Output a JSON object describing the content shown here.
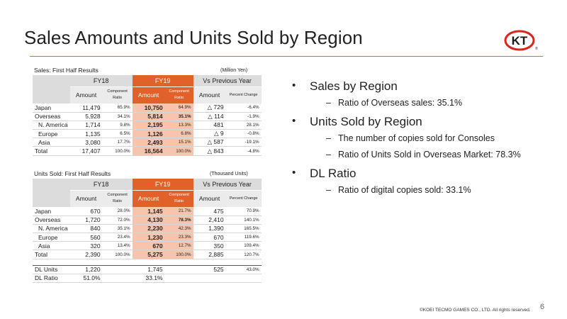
{
  "slide": {
    "title": "Sales Amounts and Units Sold by Region",
    "page_number": "6",
    "copyright": "©KOEI TECMO GAMES CO., LTD.  All rights reserved.",
    "logo_text": "KT",
    "logo_mark": "®"
  },
  "colors": {
    "accent": "#e0622a",
    "highlight": "#f7c4ae",
    "header_gray": "#dcdcdc"
  },
  "sales": {
    "caption": "Sales: First Half Results",
    "unit": "(Million Yen)",
    "headers": {
      "fy18": "FY18",
      "fy19": "FY19",
      "vs": "Vs Previous Year",
      "amount": "Amount",
      "component": "Component Ratio",
      "percent": "Percent Change"
    },
    "rows": [
      {
        "label": "Japan",
        "fy18_amount": "11,479",
        "fy18_ratio": "65.9%",
        "fy19_amount": "10,750",
        "fy19_ratio": "64.9%",
        "vs_amount": "△ 729",
        "vs_pct": "-6.4%"
      },
      {
        "label": "Overseas",
        "fy18_amount": "5,928",
        "fy18_ratio": "34.1%",
        "fy19_amount": "5,814",
        "fy19_ratio": "35.1%",
        "vs_amount": "△ 114",
        "vs_pct": "-1.9%"
      },
      {
        "label": "N. America",
        "fy18_amount": "1,714",
        "fy18_ratio": "9.8%",
        "fy19_amount": "2,195",
        "fy19_ratio": "13.3%",
        "vs_amount": "481",
        "vs_pct": "28.1%"
      },
      {
        "label": "Europe",
        "fy18_amount": "1,135",
        "fy18_ratio": "6.5%",
        "fy19_amount": "1,126",
        "fy19_ratio": "6.8%",
        "vs_amount": "△ 9",
        "vs_pct": "-0.8%"
      },
      {
        "label": "Asia",
        "fy18_amount": "3,080",
        "fy18_ratio": "17.7%",
        "fy19_amount": "2,493",
        "fy19_ratio": "15.1%",
        "vs_amount": "△ 587",
        "vs_pct": "-19.1%"
      },
      {
        "label": "Total",
        "fy18_amount": "17,407",
        "fy18_ratio": "100.0%",
        "fy19_amount": "16,564",
        "fy19_ratio": "100.0%",
        "vs_amount": "△ 843",
        "vs_pct": "-4.8%"
      }
    ]
  },
  "units": {
    "caption": "Units Sold: First Half Results",
    "unit": "(Thousand Units)",
    "headers": {
      "fy18": "FY18",
      "fy19": "FY19",
      "vs": "Vs Previous Year",
      "amount": "Amount",
      "component": "Component Ratio",
      "percent": "Percent Change"
    },
    "rows": [
      {
        "label": "Japan",
        "fy18_amount": "670",
        "fy18_ratio": "28.0%",
        "fy19_amount": "1,145",
        "fy19_ratio": "21.7%",
        "vs_amount": "475",
        "vs_pct": "70.9%"
      },
      {
        "label": "Overseas",
        "fy18_amount": "1,720",
        "fy18_ratio": "72.0%",
        "fy19_amount": "4,130",
        "fy19_ratio": "78.3%",
        "vs_amount": "2,410",
        "vs_pct": "140.1%"
      },
      {
        "label": "N. America",
        "fy18_amount": "840",
        "fy18_ratio": "35.1%",
        "fy19_amount": "2,230",
        "fy19_ratio": "42.3%",
        "vs_amount": "1,390",
        "vs_pct": "165.5%"
      },
      {
        "label": "Europe",
        "fy18_amount": "560",
        "fy18_ratio": "23.4%",
        "fy19_amount": "1,230",
        "fy19_ratio": "23.3%",
        "vs_amount": "670",
        "vs_pct": "119.6%"
      },
      {
        "label": "Asia",
        "fy18_amount": "320",
        "fy18_ratio": "13.4%",
        "fy19_amount": "670",
        "fy19_ratio": "12.7%",
        "vs_amount": "350",
        "vs_pct": "109.4%"
      },
      {
        "label": "Total",
        "fy18_amount": "2,390",
        "fy18_ratio": "100.0%",
        "fy19_amount": "5,275",
        "fy19_ratio": "100.0%",
        "vs_amount": "2,885",
        "vs_pct": "120.7%"
      }
    ],
    "dl_units": {
      "label": "DL Units",
      "fy18": "1,220",
      "fy19": "1,745",
      "vs_amount": "525",
      "vs_pct": "43.0%"
    },
    "dl_ratio": {
      "label": "DL Ratio",
      "fy18": "51.0%",
      "fy19": "33.1%"
    }
  },
  "bullets": [
    {
      "heading": "Sales by Region",
      "subs": [
        "Ratio of Overseas sales: 35.1%"
      ]
    },
    {
      "heading": "Units Sold by Region",
      "subs": [
        "The number of copies sold for Consoles",
        "Ratio of Units Sold in Overseas Market: 78.3%"
      ]
    },
    {
      "heading": "DL Ratio",
      "subs": [
        "Ratio of digital copies sold: 33.1%"
      ]
    }
  ]
}
